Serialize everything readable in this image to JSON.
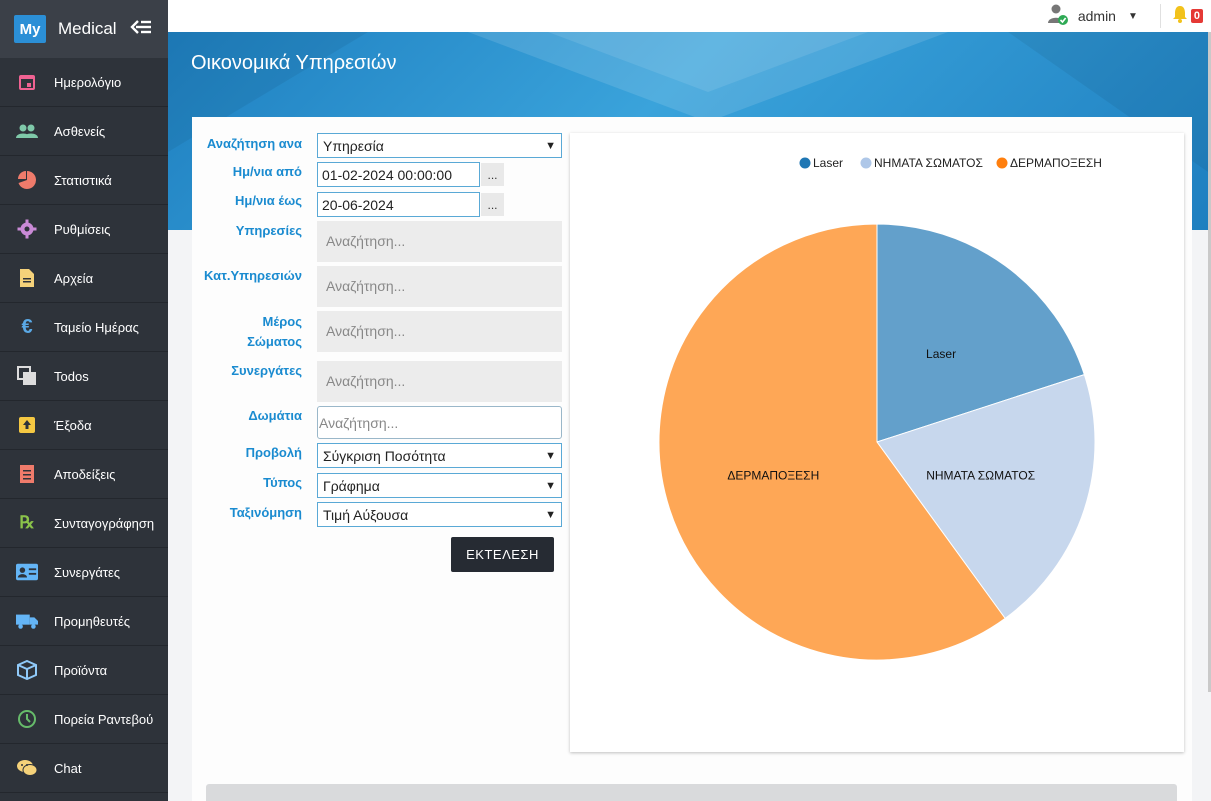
{
  "brand": {
    "logo": "My",
    "name": "Medical",
    "toggle_icon": "collapse-arrow-icon"
  },
  "sidebar": {
    "items": [
      {
        "label": "Ημερολόγιο",
        "icon": "calendar-icon",
        "color": "#f06292"
      },
      {
        "label": "Ασθενείς",
        "icon": "people-icon",
        "color": "#7fc9a9"
      },
      {
        "label": "Στατιστικά",
        "icon": "pie-chart-icon",
        "color": "#ef7b6b"
      },
      {
        "label": "Ρυθμίσεις",
        "icon": "gear-icon",
        "color": "#c98ad6"
      },
      {
        "label": "Αρχεία",
        "icon": "file-icon",
        "color": "#f5d27a"
      },
      {
        "label": "Ταμείο Ημέρας",
        "icon": "euro-icon",
        "color": "#5aa9e6"
      },
      {
        "label": "Todos",
        "icon": "todos-icon",
        "color": "#dddddd"
      },
      {
        "label": "Έξοδα",
        "icon": "expense-icon",
        "color": "#f5c842"
      },
      {
        "label": "Αποδείξεις",
        "icon": "receipt-icon",
        "color": "#ef7b6b"
      },
      {
        "label": "Συνταγογράφηση",
        "icon": "rx-icon",
        "color": "#8bc34a"
      },
      {
        "label": "Συνεργάτες",
        "icon": "id-card-icon",
        "color": "#64b5f6"
      },
      {
        "label": "Προμηθευτές",
        "icon": "truck-icon",
        "color": "#64b5f6"
      },
      {
        "label": "Προϊόντα",
        "icon": "box-icon",
        "color": "#90caf9"
      },
      {
        "label": "Πορεία Ραντεβού",
        "icon": "clock-icon",
        "color": "#66bb6a"
      },
      {
        "label": "Chat",
        "icon": "chat-icon",
        "color": "#f5d27a"
      }
    ]
  },
  "topbar": {
    "user": "admin",
    "notifications": "0"
  },
  "page": {
    "title": "Οικονομικά Υπηρεσιών"
  },
  "form": {
    "search_by": {
      "label": "Αναζήτηση ανα",
      "value": "Υπηρεσία"
    },
    "date_from": {
      "label": "Ημ/νια από",
      "value": "01-02-2024 00:00:00"
    },
    "date_to": {
      "label": "Ημ/νια έως",
      "value": "20-06-2024"
    },
    "dots": "...",
    "services": {
      "label": "Υπηρεσίες",
      "placeholder": "Αναζήτηση..."
    },
    "service_categories": {
      "label": "Κατ.Υπηρεσιών",
      "placeholder": "Αναζήτηση..."
    },
    "body_part": {
      "label_line1": "Μέρος",
      "label_line2": "Σώματος",
      "placeholder": "Αναζήτηση..."
    },
    "partners": {
      "label": "Συνεργάτες",
      "placeholder": "Αναζήτηση..."
    },
    "rooms": {
      "label": "Δωμάτια",
      "placeholder": "Αναζήτηση..."
    },
    "view": {
      "label": "Προβολή",
      "value": "Σύγκριση Ποσότητα"
    },
    "type": {
      "label": "Τύπος",
      "value": "Γράφημα"
    },
    "sort": {
      "label": "Ταξινόμηση",
      "value": "Τιμή Αύξουσα"
    },
    "run_button": "ΕΚΤΕΛΕΣΗ"
  },
  "chart_data": {
    "type": "pie",
    "legend_position": "top",
    "series": [
      {
        "name": "Laser",
        "value": 20,
        "color": "#63a0cb",
        "legend_color": "#1f77b4"
      },
      {
        "name": "ΝΗΜΑΤΑ ΣΩΜΑΤΟΣ",
        "value": 20,
        "color": "#c7d7ed",
        "legend_color": "#aec7e8"
      },
      {
        "name": "ΔΕΡΜΑΠΟΞΕΣΗ",
        "value": 60,
        "color": "#fea756",
        "legend_color": "#ff7f0e"
      }
    ]
  }
}
